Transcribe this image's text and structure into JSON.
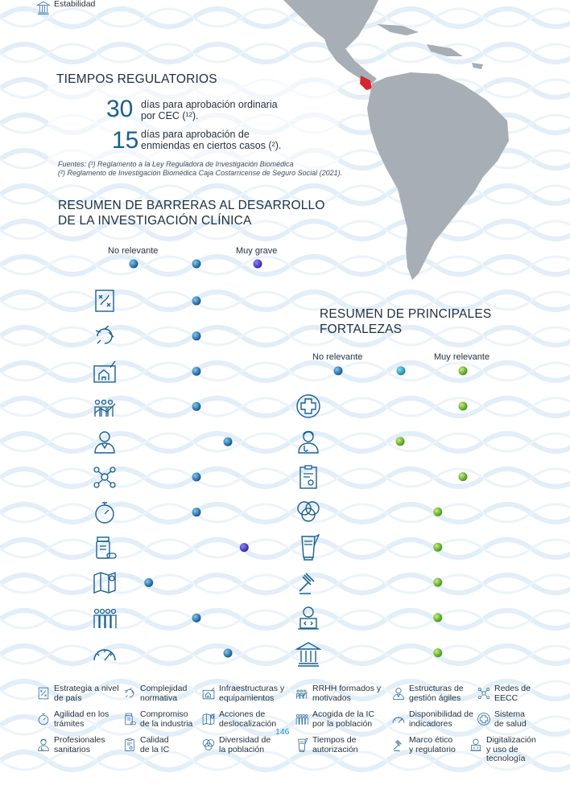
{
  "title_tiempos": "TIEMPOS REGULATORIOS",
  "tiempos": [
    {
      "num": "30",
      "text1": "días para aprobación ordinaria",
      "text2": "por CEC (¹²)."
    },
    {
      "num": "15",
      "text1": "días para aprobación de",
      "text2": "enmiendas en ciertos casos (²)."
    }
  ],
  "fuentes": {
    "line1": "Fuentes: (¹) Reglamento a la Ley Reguladora de Investigación Biomédica",
    "line2": "(²) Reglamento de Investigación Biomédica Caja Costarricense de Seguro Social (2021)."
  },
  "barreras": {
    "title1": "RESUMEN DE BARRERAS AL DESARROLLO",
    "title2": "DE LA INVESTIGACIÓN CLÍNICA",
    "scale_low": "No relevante",
    "scale_high": "Muy grave",
    "items": [
      {
        "icon": "strategy-icon",
        "value": 0.5
      },
      {
        "icon": "complexity-icon",
        "value": 0.5
      },
      {
        "icon": "infrastructure-icon",
        "value": 0.5
      },
      {
        "icon": "hr-icon",
        "value": 0.5
      },
      {
        "icon": "manager-icon",
        "value": 0.75
      },
      {
        "icon": "network-icon",
        "value": 0.5
      },
      {
        "icon": "stopwatch-icon",
        "value": 0.5
      },
      {
        "icon": "medicine-icon",
        "value": 0.88
      },
      {
        "icon": "map-icon",
        "value": 0.12
      },
      {
        "icon": "population-icon",
        "value": 0.5
      },
      {
        "icon": "gauge-icon",
        "value": 0.75
      }
    ]
  },
  "fortalezas": {
    "title1": "RESUMEN DE PRINCIPALES",
    "title2": "FORTALEZAS",
    "scale_low": "No relevante",
    "scale_high": "Muy relevante",
    "items": [
      {
        "icon": "health-cross-icon",
        "value": 1.0
      },
      {
        "icon": "professional-icon",
        "value": 0.5
      },
      {
        "icon": "certificate-icon",
        "value": 1.0
      },
      {
        "icon": "diversity-icon",
        "value": 0.8
      },
      {
        "icon": "sign-document-icon",
        "value": 0.8
      },
      {
        "icon": "gavel-icon",
        "value": 0.8
      },
      {
        "icon": "digital-icon",
        "value": 0.8
      },
      {
        "icon": "institution-icon",
        "value": 0.8
      }
    ]
  },
  "legend": [
    {
      "icon": "strategy-icon",
      "l1": "Estrategia a nivel",
      "l2": "de país"
    },
    {
      "icon": "complexity-icon",
      "l1": "Complejidad",
      "l2": "normativa"
    },
    {
      "icon": "infrastructure-icon",
      "l1": "Infraestructuras y",
      "l2": "equipamientos"
    },
    {
      "icon": "hr-icon",
      "l1": "RRHH formados y",
      "l2": "motivados"
    },
    {
      "icon": "manager-icon",
      "l1": "Estructuras de",
      "l2": "gestión ágiles"
    },
    {
      "icon": "network-icon",
      "l1": "Redes de",
      "l2": "EECC"
    },
    {
      "icon": "stopwatch-icon",
      "l1": "Agilidad en los",
      "l2": "trámites"
    },
    {
      "icon": "medicine-icon",
      "l1": "Compromiso",
      "l2": "de la industria"
    },
    {
      "icon": "map-icon",
      "l1": "Acciones de",
      "l2": "deslocalización"
    },
    {
      "icon": "population-icon",
      "l1": "Acogida de la IC",
      "l2": "por la población"
    },
    {
      "icon": "gauge-icon",
      "l1": "Disponibilidad de",
      "l2": "indicadores"
    },
    {
      "icon": "health-cross-icon",
      "l1": "Sistema",
      "l2": "de salud"
    },
    {
      "icon": "professional-icon",
      "l1": "Profesionales",
      "l2": "sanitarios"
    },
    {
      "icon": "certificate-icon",
      "l1": "Calidad",
      "l2": "de la IC"
    },
    {
      "icon": "diversity-icon",
      "l1": "Diversidad de",
      "l2": "la población"
    },
    {
      "icon": "sign-document-icon",
      "l1": "Tiempos de",
      "l2": "autorización"
    },
    {
      "icon": "gavel-icon",
      "l1": "Marco ético",
      "l2": "y regulatorio"
    },
    {
      "icon": "digital-icon",
      "l1": "Digitalización",
      "l2": "y uso de",
      "l3": "tecnología"
    },
    {
      "icon": "institution-icon",
      "l1": "Estabilidad",
      "l2": ""
    }
  ],
  "page_number": "146",
  "colors": {
    "accent": "#1a5f8f",
    "barrier_bar_start": "#4ea3e6",
    "barrier_bar_end": "#3a3fd6",
    "strength_bar_start": "#38c2d6",
    "strength_bar_end": "#7ec43a",
    "map_land": "#a7aeb5",
    "costa_rica": "#d8262e"
  }
}
